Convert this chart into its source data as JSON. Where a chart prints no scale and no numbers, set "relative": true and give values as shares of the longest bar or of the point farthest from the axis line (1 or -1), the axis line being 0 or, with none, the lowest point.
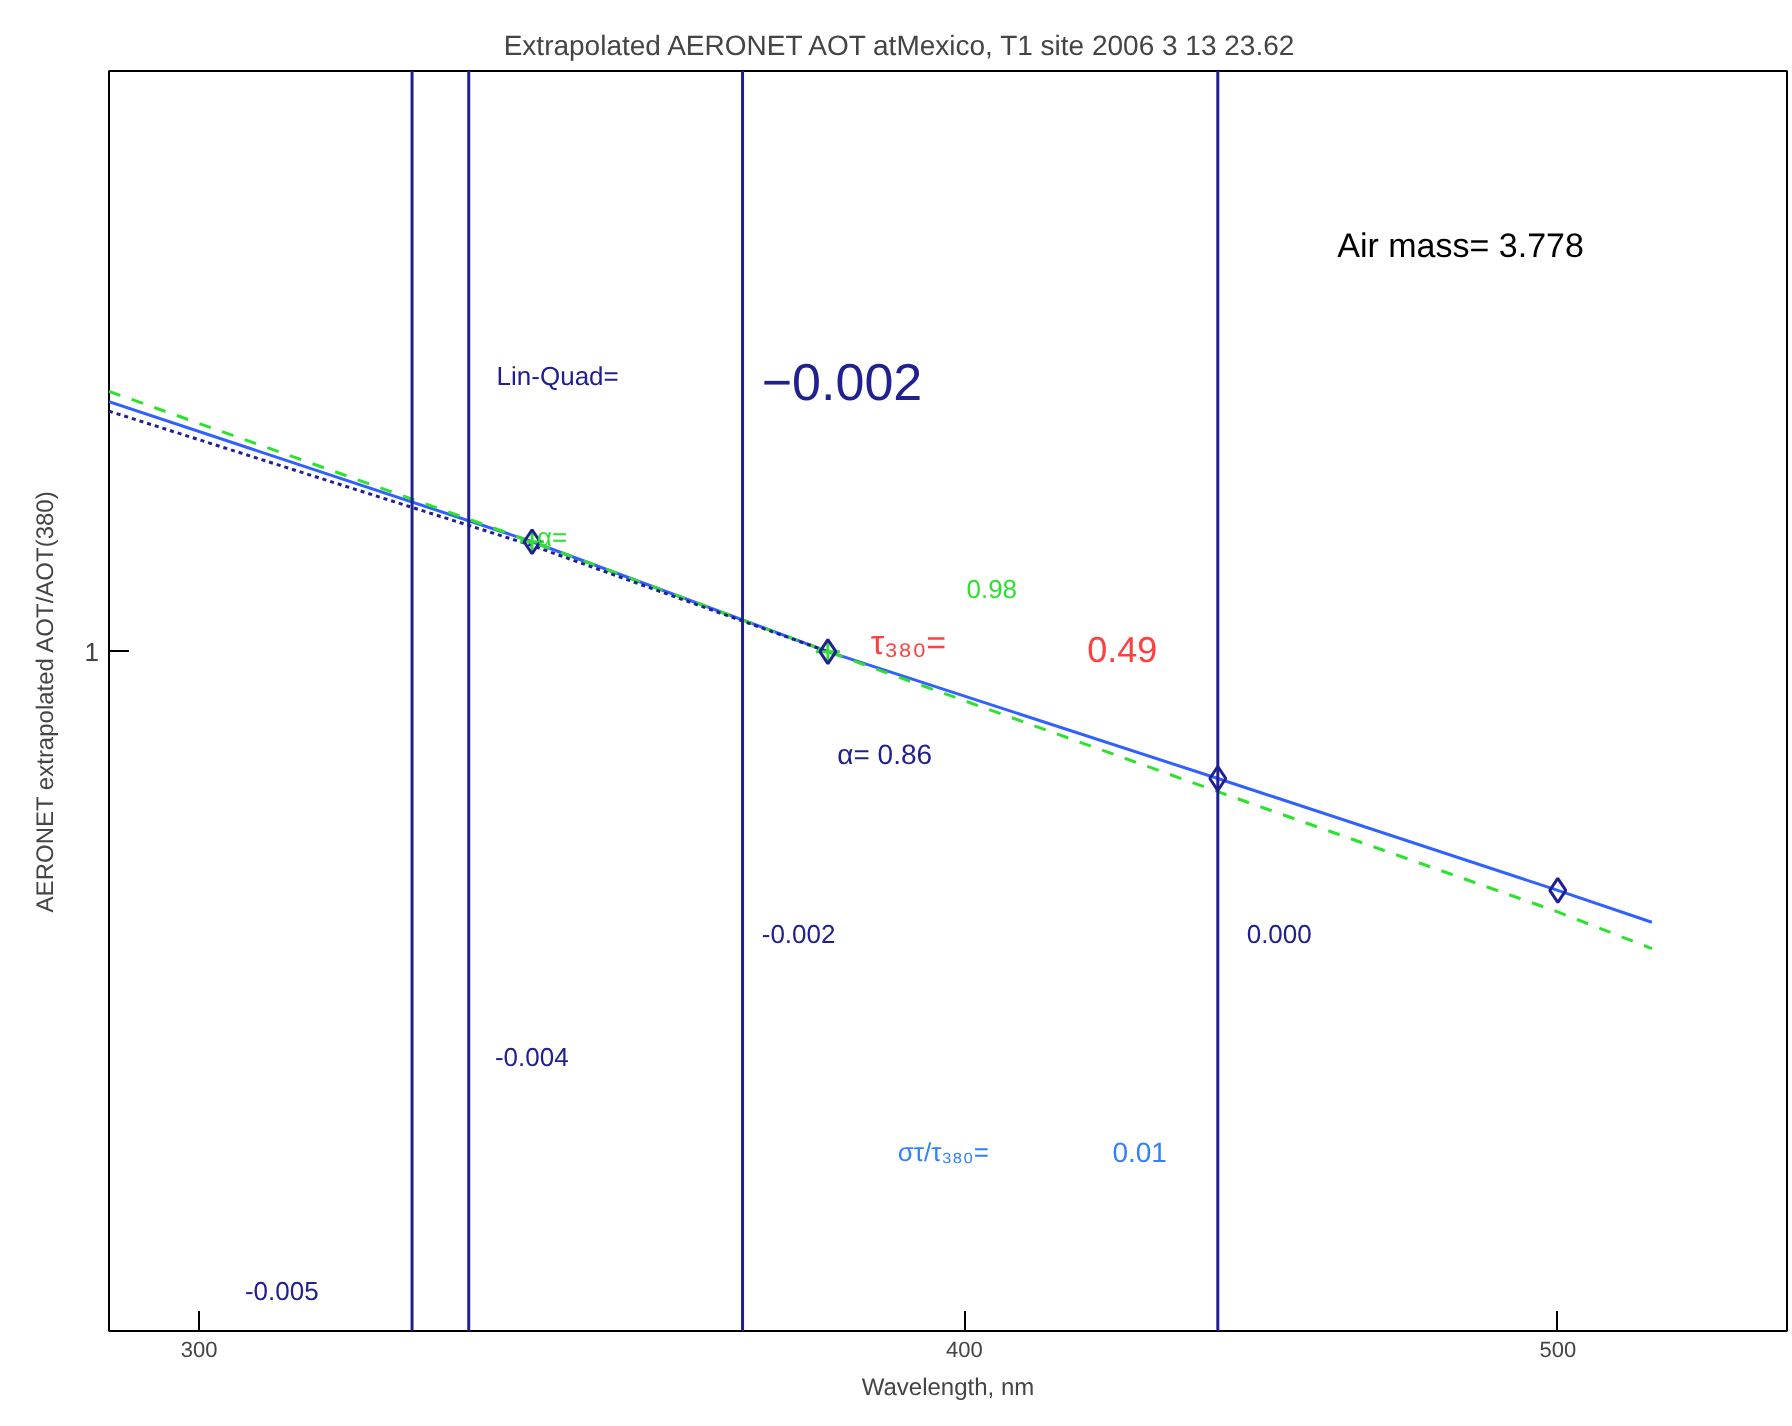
{
  "chart_data": {
    "type": "line",
    "title": "Extrapolated AERONET AOT atMexico, T1 site     2006     3 13     23.62",
    "xlabel": "Wavelength, nm",
    "ylabel": "AERONET extrapolated AOT/AOT(380)",
    "log": "x",
    "relative": true,
    "xlim": [
      290,
      545
    ],
    "xticks": [
      300,
      400,
      500
    ],
    "series": [
      {
        "color": "#3060ff",
        "line_style": "solid",
        "x": [
          290,
          340,
          380,
          440,
          500,
          518
        ],
        "values": [
          0.989,
          0.84,
          0.723,
          0.588,
          0.469,
          0.435
        ]
      },
      {
        "color": "#30e030",
        "line_style": "dashed",
        "x": [
          290,
          340,
          380,
          440,
          500,
          518
        ],
        "values": [
          1.0,
          0.84,
          0.723,
          0.574,
          0.446,
          0.407
        ]
      },
      {
        "color": "#202090",
        "line_style": "dotted",
        "x": [
          290,
          340,
          380
        ],
        "values": [
          0.979,
          0.836,
          0.723
        ]
      },
      {
        "color": "#30e030",
        "type": "scatter",
        "marker": "cross",
        "x": [
          340,
          380
        ],
        "values": [
          0.84,
          0.723
        ]
      },
      {
        "color": "#202090",
        "type": "scatter",
        "marker": "diamond",
        "x": [
          340,
          380,
          440,
          500
        ],
        "values": [
          0.84,
          0.723,
          0.588,
          0.469
        ]
      }
    ],
    "ref_lines": [
      {
        "axis": "x",
        "value": 325,
        "color": "#202090"
      },
      {
        "axis": "x",
        "value": 332,
        "color": "#202090"
      },
      {
        "axis": "x",
        "value": 368,
        "color": "#202090"
      },
      {
        "axis": "x",
        "value": 440,
        "color": "#202090"
      }
    ],
    "annotations": [
      "Air mass=  3.778",
      "Lin-Quad=",
      "−0.002",
      "α=",
      "0.98",
      "τ₃₈₀=",
      "0.49",
      "α=  0.86",
      "στ/τ₃₈₀=",
      "0.01",
      "-0.005",
      "-0.004",
      "-0.002",
      "0.000",
      "1"
    ]
  }
}
